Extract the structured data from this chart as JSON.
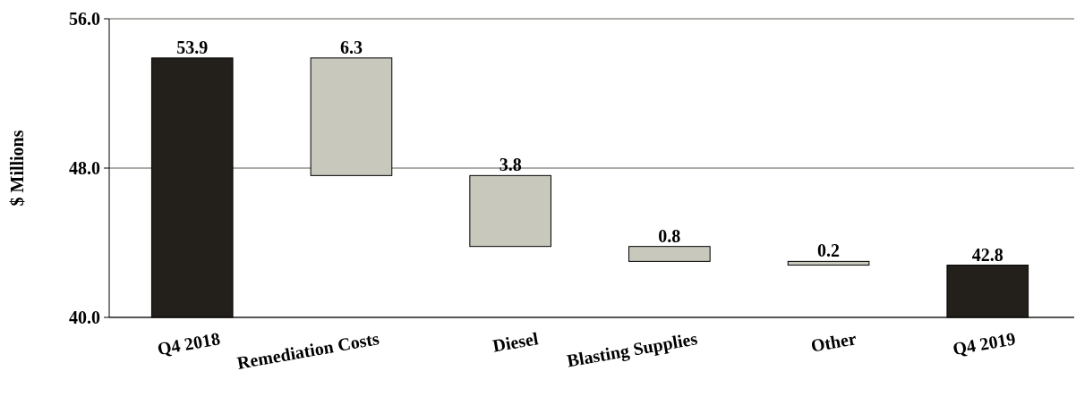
{
  "chart_data": {
    "type": "bar",
    "ylabel": "$ Millions",
    "categories": [
      "Q4 2018",
      "Remediation Costs",
      "Diesel",
      "Blasting Supplies",
      "Other",
      "Q4 2019"
    ],
    "values": [
      53.9,
      -6.3,
      -3.8,
      -0.8,
      -0.2,
      42.8
    ],
    "base": [
      null,
      53.9,
      47.6,
      43.8,
      43.0,
      null
    ],
    "colors": [
      "#231f1a",
      "#c8c8bc",
      "#c8c8bc",
      "#c8c8bc",
      "#c8c8bc",
      "#231f1a"
    ],
    "value_labels": [
      "53.9",
      "6.3",
      "3.8",
      "0.8",
      "0.2",
      "42.8"
    ],
    "ylim": [
      40,
      56
    ],
    "yticks": [
      {
        "value": 40,
        "label": "40.0"
      },
      {
        "value": 48,
        "label": "48.0"
      },
      {
        "value": 56,
        "label": "56.0"
      }
    ],
    "grid": "y"
  }
}
